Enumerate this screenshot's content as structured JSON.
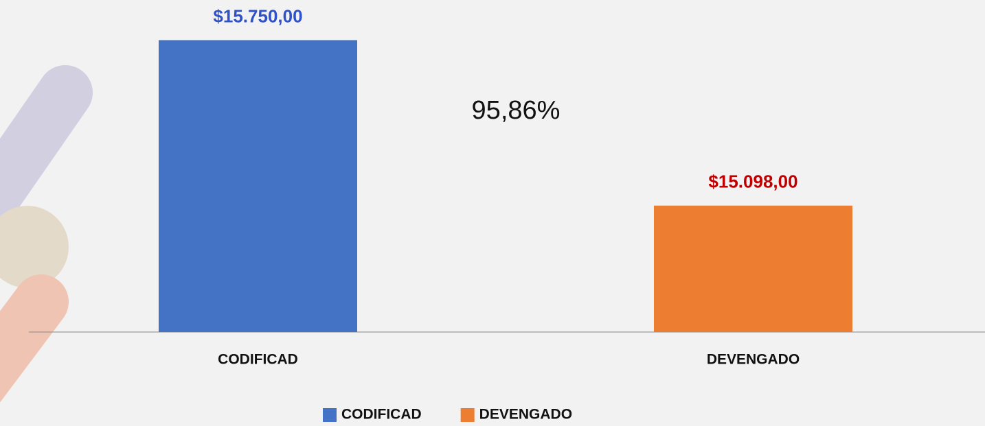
{
  "chart_data": {
    "type": "bar",
    "categories": [
      "CODIFICAD",
      "DEVENGADO"
    ],
    "series": [
      {
        "name": "CODIFICAD",
        "color": "#4472c4",
        "label_color": "#2e50c8",
        "values": [
          15750,
          null
        ],
        "value_labels": [
          "$15.750,00",
          null
        ]
      },
      {
        "name": "DEVENGADO",
        "color": "#ed7d31",
        "label_color": "#c00000",
        "values": [
          null,
          15098
        ],
        "value_labels": [
          null,
          "$15.098,00"
        ]
      }
    ],
    "annotation": "95,86%",
    "ylim": [
      14600,
      15800
    ],
    "legend": "bottom"
  }
}
